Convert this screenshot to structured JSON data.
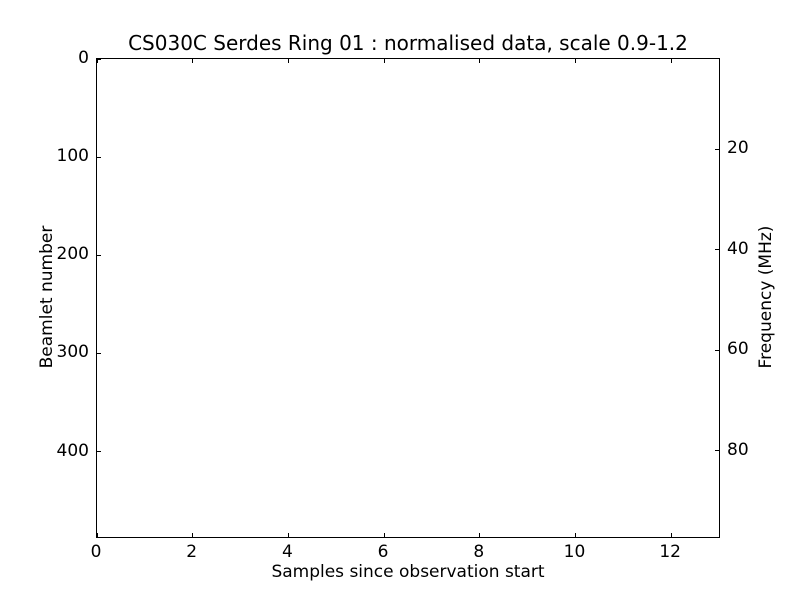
{
  "chart_data": {
    "type": "heatmap",
    "title": "CS030C Serdes Ring 01 : normalised data, scale 0.9-1.2",
    "xlabel": "Samples since observation start",
    "ylabel_left": "Beamlet number",
    "ylabel_right": "Frequency (MHz)",
    "xlim": [
      0,
      13
    ],
    "ylim_left": [
      0,
      487
    ],
    "y_axis_inverted": true,
    "ylim_right": [
      2.1,
      97.1
    ],
    "x_ticks": [
      0,
      2,
      4,
      6,
      8,
      10,
      12
    ],
    "y_ticks_left": [
      0,
      100,
      200,
      300,
      400
    ],
    "y_ticks_right": [
      20,
      40,
      60,
      80
    ],
    "grid": false,
    "legend": null,
    "series": [],
    "colors": {
      "background": "#ffffff",
      "frame": "#000000",
      "text": "#000000"
    }
  }
}
